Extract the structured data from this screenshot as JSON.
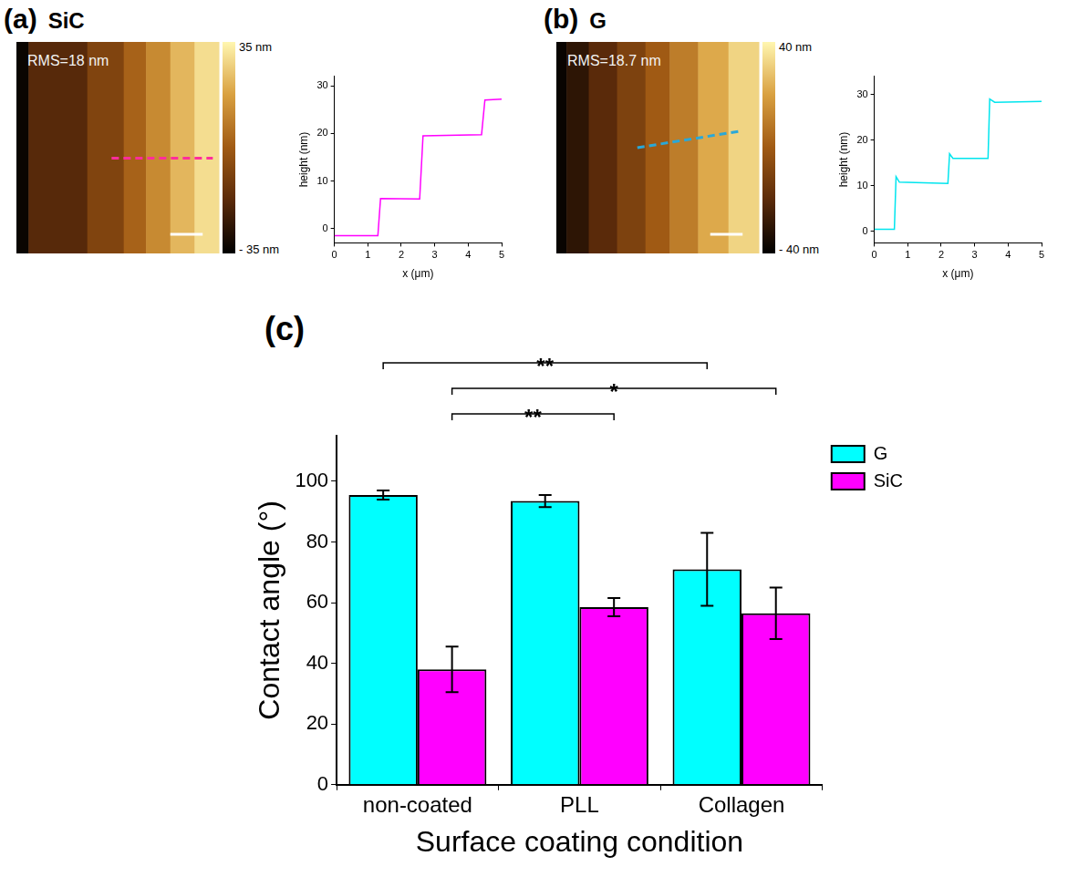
{
  "chart_data": [
    {
      "type": "line",
      "panel": "(a)",
      "title": "SiC",
      "x_label": "x (μm)",
      "y_label": "height (nm)",
      "xlim": [
        0,
        5
      ],
      "xticks": [
        0,
        1,
        2,
        3,
        4,
        5
      ],
      "ylim": [
        -3,
        32
      ],
      "yticks": [
        0,
        10,
        20,
        30
      ],
      "grid": false,
      "color": "#ff00ff",
      "x": [
        0,
        1.3,
        1.38,
        2.55,
        2.65,
        4.4,
        4.5,
        5
      ],
      "values": [
        -1.5,
        -1.5,
        6.3,
        6.2,
        19.5,
        19.7,
        27,
        27.2
      ],
      "image": {
        "rms": "RMS=18 nm",
        "xlim": [
          0,
          10
        ],
        "edges": [
          0.6,
          3.5,
          5.3,
          6.4,
          7.6,
          8.8
        ],
        "heights": [
          -33,
          -18,
          -8,
          2,
          12,
          22,
          30
        ],
        "colorbar": {
          "range": [
            -35,
            35
          ],
          "ticks": [
            {
              "value": 35,
              "label": "35 nm"
            },
            {
              "value": -35,
              "label": "- 35 nm"
            }
          ]
        },
        "profile_line": {
          "color": "#ff2d9b",
          "line_style": "dashed"
        }
      }
    },
    {
      "type": "line",
      "panel": "(b)",
      "title": "G",
      "x_label": "x (μm)",
      "y_label": "height (nm)",
      "xlim": [
        0,
        5
      ],
      "xticks": [
        0,
        1,
        2,
        3,
        4,
        5
      ],
      "ylim": [
        -2.5,
        34
      ],
      "yticks": [
        0,
        10,
        20,
        30
      ],
      "grid": false,
      "color": "#00e5ee",
      "x": [
        0,
        0.6,
        0.65,
        0.75,
        2.2,
        2.25,
        2.35,
        3.4,
        3.45,
        3.6,
        5
      ],
      "values": [
        0.5,
        0.5,
        12,
        10.8,
        10.5,
        17,
        16,
        16,
        29,
        28.3,
        28.5
      ],
      "image": {
        "rms": "RMS=18.7 nm",
        "xlim": [
          0,
          10
        ],
        "edges": [
          0.5,
          1.6,
          3.0,
          4.4,
          5.6,
          7.0,
          8.5
        ],
        "heights": [
          -38,
          -30,
          -20,
          -10,
          0,
          10,
          22,
          32
        ],
        "colorbar": {
          "range": [
            -40,
            40
          ],
          "ticks": [
            {
              "value": 40,
              "label": "40 nm"
            },
            {
              "value": -40,
              "label": "- 40 nm"
            }
          ]
        },
        "profile_line": {
          "color": "#2aa8d8",
          "line_style": "dashed"
        }
      }
    },
    {
      "type": "bar",
      "panel": "(c)",
      "x_label": "Surface coating condition",
      "y_label": "Contact angle (°)",
      "categories": [
        "non-coated",
        "PLL",
        "Collagen"
      ],
      "series": [
        {
          "name": "G",
          "color": "#00ffff",
          "values": [
            95.5,
            93.5,
            71
          ],
          "errors": [
            1.5,
            2,
            12
          ]
        },
        {
          "name": "SiC",
          "color": "#ff00ff",
          "values": [
            38,
            58.5,
            56.5
          ],
          "errors": [
            7.5,
            3,
            8.5
          ]
        }
      ],
      "ylim": [
        0,
        115
      ],
      "yticks": [
        0,
        20,
        40,
        60,
        80,
        100
      ],
      "grid": false,
      "legend": "right-top",
      "significance": [
        {
          "label": "**",
          "from": {
            "category": "non-coated",
            "series": "G"
          },
          "to": {
            "category": "Collagen",
            "series": "G"
          }
        },
        {
          "label": "*",
          "from": {
            "category": "non-coated",
            "series": "SiC"
          },
          "to": {
            "category": "Collagen",
            "series": "SiC"
          }
        },
        {
          "label": "**",
          "from": {
            "category": "non-coated",
            "series": "SiC"
          },
          "to": {
            "category": "PLL",
            "series": "SiC"
          }
        }
      ]
    }
  ]
}
